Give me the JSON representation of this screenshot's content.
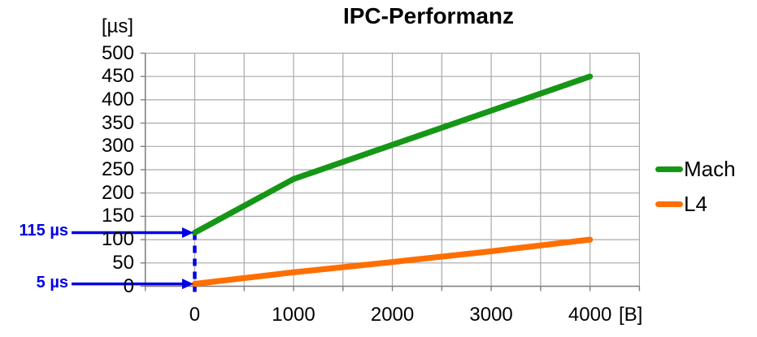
{
  "chart_data": {
    "type": "line",
    "title": "IPC-Performanz",
    "y_unit": "[µs]",
    "x_unit": "[B]",
    "xlim": [
      -500,
      4500
    ],
    "ylim": [
      0,
      500
    ],
    "x_grid_step": 500,
    "y_grid_step": 50,
    "grid": true,
    "x_ticks": {
      "values": [
        0,
        1000,
        2000,
        3000,
        4000
      ],
      "labels": [
        "0",
        "1000",
        "2000",
        "3000",
        "4000"
      ]
    },
    "y_ticks": {
      "values": [
        500,
        450,
        400,
        350,
        300,
        250,
        200,
        150,
        100,
        50,
        0
      ],
      "labels": [
        "500",
        "450",
        "400",
        "350",
        "300",
        "250",
        "200",
        "150",
        "100",
        "50",
        "0"
      ]
    },
    "series": [
      {
        "name": "Mach",
        "color": "#169616",
        "points": [
          [
            0,
            115
          ],
          [
            1000,
            230
          ],
          [
            4000,
            450
          ]
        ]
      },
      {
        "name": "L4",
        "color": "#FF6E00",
        "points": [
          [
            0,
            5
          ],
          [
            1000,
            30
          ],
          [
            2000,
            52
          ],
          [
            3000,
            75
          ],
          [
            4000,
            100
          ]
        ]
      }
    ],
    "legend": {
      "position": "right",
      "entries": [
        "Mach",
        "L4"
      ]
    },
    "annotations": [
      {
        "label": "115 µs",
        "x": 0,
        "y": 115
      },
      {
        "label": "5 µs",
        "x": 0,
        "y": 5
      }
    ],
    "annotation_color": "#0000E6",
    "dashed_guide": {
      "x": 0,
      "y_top": 115,
      "y_bottom": -23
    }
  },
  "colors": {
    "grid": "#A9A9A9",
    "axis": "#808080",
    "text": "#000000",
    "background": "#FFFFFF"
  }
}
